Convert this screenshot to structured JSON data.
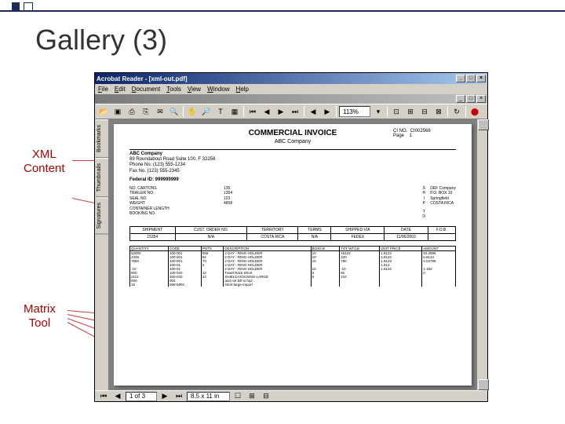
{
  "slide": {
    "title": "Gallery (3)",
    "annotations": {
      "xml": "XML\nContent",
      "matrix": "Matrix\nTool"
    }
  },
  "window": {
    "title": "Acrobat Reader - [xml-out.pdf]",
    "min": "_",
    "max": "□",
    "close": "×"
  },
  "menu": [
    "File",
    "Edit",
    "Document",
    "Tools",
    "View",
    "Window",
    "Help"
  ],
  "toolbar": {
    "zoom": "113%",
    "icons": [
      "📂",
      "💾",
      "🖨",
      "📋",
      "🔍",
      "|",
      "✋",
      "🔎",
      "T",
      "▦",
      "|",
      "◀",
      "◀",
      "▶",
      "▶",
      "|",
      "◀",
      "▶",
      "|",
      "113%",
      "▾",
      "|",
      "⊡",
      "⊞",
      "⊟",
      "⊠",
      "|",
      "↔",
      "|",
      "📄"
    ]
  },
  "sidetabs": [
    "Thumbnails",
    "Bookmarks",
    "Signatures"
  ],
  "status": {
    "nav": [
      "⏮",
      "◀"
    ],
    "page_field": "1 of 3",
    "nav2": [
      "▶",
      "⏭"
    ],
    "size": "8.5 x 11 in",
    "extras": [
      "☐",
      "⊞",
      "⊟"
    ]
  },
  "invoice": {
    "title": "COMMERCIAL INVOICE",
    "company_sub": "ABC Company",
    "meta": {
      "cino_label": "CI NO.",
      "cino": "CI002566",
      "page_label": "Page",
      "page": "1"
    },
    "from": {
      "name": "ABC Company",
      "addr": "89 Roundabout Road Suite 100, F   32256",
      "phone": "Phone No. (123) 555-1234",
      "fax": "Fax No. (123) 555-2345",
      "fedid": "Federal ID: 999999999"
    },
    "ship": {
      "rows": [
        [
          "NO. CARTONS",
          "135"
        ],
        [
          "TRAILER NO.",
          "1354"
        ],
        [
          "SEAL NO",
          ""
        ],
        [
          "WEIGHT",
          ""
        ],
        [
          "CONTAINER LENGTH",
          "123"
        ],
        [
          "BOOKING NO.",
          "4658"
        ]
      ]
    },
    "shipto": {
      "label_s": "S",
      "label_h": "H",
      "label_i": "I",
      "label_p": "P",
      "label_t": "T",
      "label_o": "O",
      "name": "DEF Company",
      "addr1": "P.O. BOX 10",
      "addr2": "Springfield",
      "addr3": "COSTA RICA"
    },
    "band": {
      "cols": [
        "SHIPMENT",
        "CUST. ORDER NO.",
        "TERRITORY",
        "TERMS",
        "SHIPPED VIA",
        "DATE",
        "F.O.B."
      ],
      "row": [
        "15354",
        "N/A",
        "COSTA RICA",
        "N/A",
        "FEDEX",
        "11/06/2003",
        ""
      ]
    },
    "items": {
      "cols": [
        "QUANTITY",
        "CODE",
        "PNTS",
        "DESCRIPTION",
        "BOX/LB",
        "TOT WT/LB",
        "UNIT PRICE",
        "AMOUNT"
      ],
      "rows": [
        [
          "52000",
          "100-001",
          "556",
          "2 DAY - RING-HOLDER",
          "10",
          "15122",
          "1.8122",
          "92.2596"
        ],
        [
          "2345",
          "100-001",
          "82",
          "2 DAY - RING-HOLDER",
          "10",
          "320",
          "1.8122",
          "5.8134"
        ],
        [
          "7850",
          "100-001",
          "70",
          "2 DAY - RING-HOLDER",
          "10",
          "780",
          "1.8123",
          "4.04795"
        ],
        [
          "",
          "100-01",
          "2",
          "2 DAY - RING-HOLDER",
          "",
          "",
          "1.812",
          ""
        ],
        [
          "-10",
          "100-01",
          "",
          "2 DAY - RING-HOLDER",
          "10",
          "-10",
          "1.8122",
          "1-182"
        ],
        [
          "600",
          "100-020",
          "12",
          "Towel Rack Short",
          "5",
          "60",
          "",
          "0"
        ],
        [
          "2112",
          "200-020",
          "42",
          "SHIELD-HOUSING-LARGE",
          "5",
          "210",
          "",
          ""
        ],
        [
          "000",
          "004",
          "",
          "and not bill to hq2",
          "",
          "",
          "",
          ""
        ],
        [
          "15",
          "090-MRS",
          "",
          "short-large-import",
          "",
          "",
          "",
          ""
        ]
      ]
    }
  }
}
